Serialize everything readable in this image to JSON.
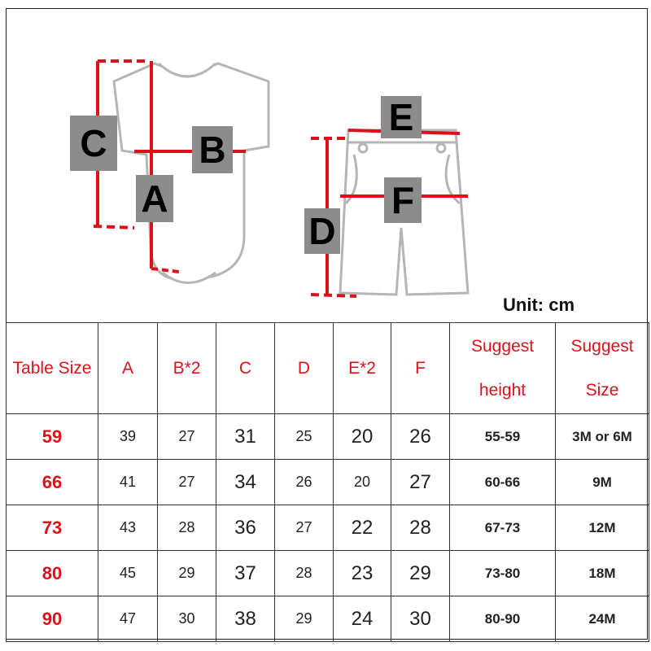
{
  "diagram": {
    "labels": {
      "a": "A",
      "b": "B",
      "c": "C",
      "d": "D",
      "e": "E",
      "f": "F"
    },
    "unit": "Unit: cm",
    "colors": {
      "measure_line": "#e0101a",
      "label_box": "#8c8c8c",
      "garment_outline": "#b5b5b5"
    }
  },
  "table": {
    "headers": [
      "Table Size",
      "A",
      "B*2",
      "C",
      "D",
      "E*2",
      "F",
      "Suggest height",
      "Suggest Size"
    ],
    "header_lines": {
      "suggest_height": [
        "Suggest",
        "height"
      ],
      "suggest_size": [
        "Suggest",
        "Size"
      ]
    },
    "rows": [
      [
        "59",
        "39",
        "27",
        "31",
        "25",
        "20",
        "26",
        "55-59",
        "3M or 6M"
      ],
      [
        "66",
        "41",
        "27",
        "34",
        "26",
        "20",
        "27",
        "60-66",
        "9M"
      ],
      [
        "73",
        "43",
        "28",
        "36",
        "27",
        "22",
        "28",
        "67-73",
        "12M"
      ],
      [
        "80",
        "45",
        "29",
        "37",
        "28",
        "23",
        "29",
        "73-80",
        "18M"
      ],
      [
        "90",
        "47",
        "30",
        "38",
        "29",
        "24",
        "30",
        "80-90",
        "24M"
      ]
    ]
  }
}
